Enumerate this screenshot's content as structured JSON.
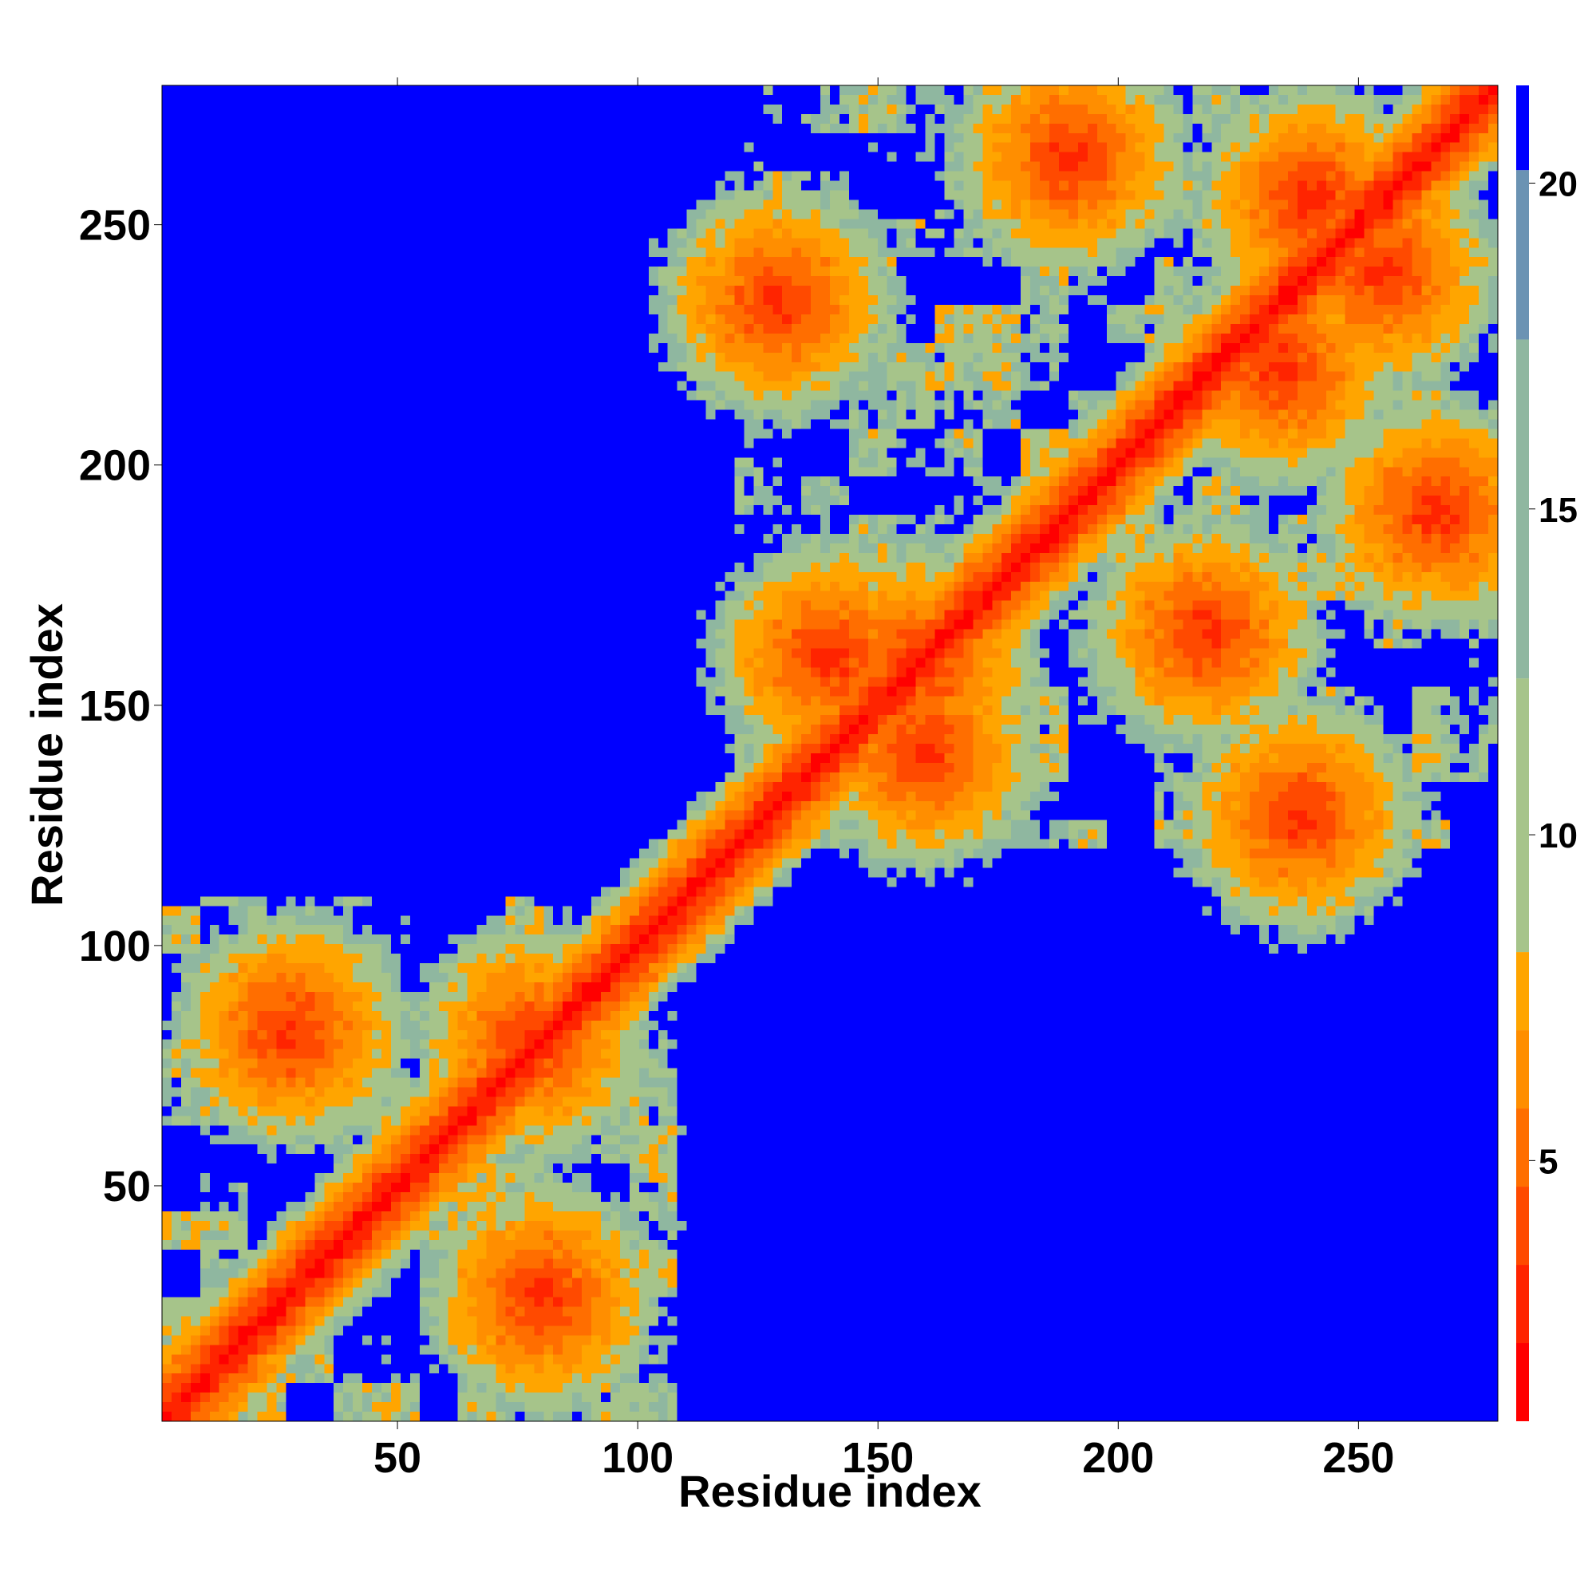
{
  "chart_data": {
    "type": "heatmap",
    "title": "",
    "xlabel": "Residue index",
    "ylabel": "Residue index",
    "xlim": [
      1,
      279
    ],
    "ylim": [
      1,
      279
    ],
    "x_ticks": [
      50,
      100,
      150,
      200,
      250
    ],
    "y_ticks": [
      50,
      100,
      150,
      200,
      250
    ],
    "colorbar": {
      "ticks": [
        5,
        10,
        15,
        20
      ],
      "range": [
        1,
        21.5
      ],
      "colors": [
        "#ff0000",
        "#ff2400",
        "#ff4a00",
        "#ff6e00",
        "#ff8e00",
        "#ffa500",
        "#a6c48a",
        "#8fb7a0",
        "#6b93b3",
        "#0000ff"
      ]
    },
    "grid": false,
    "features": {
      "diagonal_band": [
        [
          1,
          279
        ]
      ],
      "off_diagonal_contacts": [
        {
          "i": 78,
          "j": 80
        },
        {
          "i": 28,
          "j": 82
        },
        {
          "i": 129,
          "j": 234
        },
        {
          "i": 159,
          "j": 159
        },
        {
          "i": 218,
          "j": 165
        },
        {
          "i": 238,
          "j": 127
        },
        {
          "i": 190,
          "j": 264
        },
        {
          "i": 266,
          "j": 190
        },
        {
          "i": 234,
          "j": 220
        },
        {
          "i": 160,
          "j": 140
        },
        {
          "i": 140,
          "j": 160
        },
        {
          "i": 80,
          "j": 27
        },
        {
          "i": 240,
          "j": 255
        },
        {
          "i": 255,
          "j": 240
        }
      ]
    }
  }
}
